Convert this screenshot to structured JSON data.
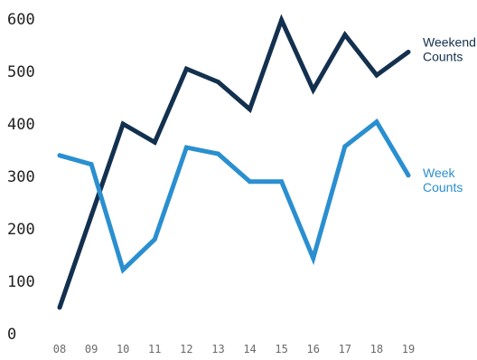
{
  "chart_data": {
    "type": "line",
    "categories": [
      "08",
      "09",
      "10",
      "11",
      "12",
      "13",
      "14",
      "15",
      "16",
      "17",
      "18",
      "19"
    ],
    "series": [
      {
        "name": "Weekend Counts",
        "name_lines": [
          "Weekend",
          "Counts"
        ],
        "color": "#13304f",
        "values": [
          50,
          225,
          400,
          365,
          505,
          480,
          428,
          598,
          465,
          570,
          493,
          537
        ]
      },
      {
        "name": "Week Counts",
        "name_lines": [
          "Week",
          "Counts"
        ],
        "color": "#2a8fd0",
        "values": [
          340,
          323,
          122,
          180,
          355,
          343,
          290,
          290,
          144,
          357,
          404,
          302
        ]
      }
    ],
    "yticks": [
      "0",
      "100",
      "200",
      "300",
      "400",
      "500",
      "600"
    ],
    "ylim": [
      0,
      600
    ],
    "grid": false,
    "legend": "right",
    "title": "",
    "xlabel": "",
    "ylabel": ""
  }
}
